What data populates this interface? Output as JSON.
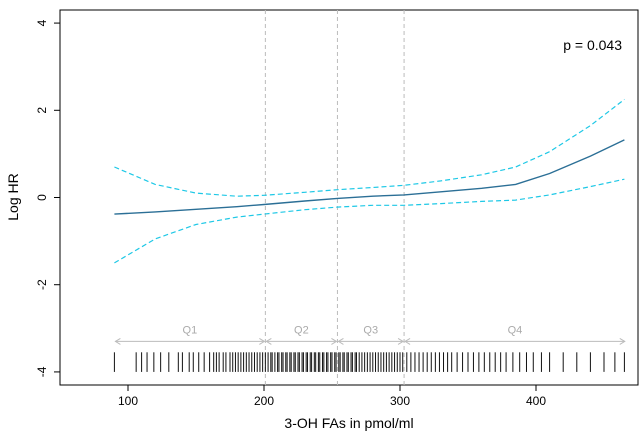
{
  "chart_data": {
    "type": "line",
    "xlabel": "3-OH FAs in pmol/ml",
    "ylabel": "Log HR",
    "annotation": "p = 0.043",
    "xlim": [
      50,
      475
    ],
    "ylim": [
      -4.3,
      4.3
    ],
    "x_ticks": [
      100,
      200,
      300,
      400
    ],
    "y_ticks": [
      -4,
      -2,
      0,
      2,
      4
    ],
    "grid": false,
    "colors": {
      "fit": "#2b6f96",
      "ci": "#1ec8e6",
      "quartile_lines": "#bbbbbb",
      "rug": "#111111"
    },
    "series": [
      {
        "role": "fit",
        "x": [
          90,
          120,
          150,
          180,
          200,
          230,
          254,
          280,
          303,
          330,
          360,
          385,
          410,
          440,
          465
        ],
        "y": [
          -0.38,
          -0.33,
          -0.27,
          -0.21,
          -0.16,
          -0.08,
          -0.02,
          0.03,
          0.06,
          0.13,
          0.21,
          0.3,
          0.55,
          0.95,
          1.32
        ]
      },
      {
        "role": "ci-upper",
        "x": [
          90,
          120,
          150,
          180,
          200,
          230,
          254,
          280,
          303,
          330,
          360,
          385,
          410,
          440,
          465
        ],
        "y": [
          0.7,
          0.3,
          0.1,
          0.03,
          0.05,
          0.12,
          0.18,
          0.23,
          0.28,
          0.38,
          0.52,
          0.7,
          1.05,
          1.65,
          2.25
        ]
      },
      {
        "role": "ci-lower",
        "x": [
          90,
          120,
          150,
          180,
          200,
          230,
          254,
          280,
          303,
          330,
          360,
          385,
          410,
          440,
          465
        ],
        "y": [
          -1.5,
          -0.95,
          -0.62,
          -0.45,
          -0.38,
          -0.28,
          -0.22,
          -0.18,
          -0.18,
          -0.14,
          -0.09,
          -0.06,
          0.06,
          0.25,
          0.42
        ]
      }
    ],
    "quartile_cutoffs": [
      201,
      254,
      303
    ],
    "quartiles": [
      {
        "label": "Q1",
        "from": 90,
        "to": 201
      },
      {
        "label": "Q2",
        "from": 201,
        "to": 254
      },
      {
        "label": "Q3",
        "from": 254,
        "to": 303
      },
      {
        "label": "Q4",
        "from": 303,
        "to": 466
      }
    ],
    "quartile_arrow_y": -3.3,
    "rug_y": [
      -4,
      -3.55
    ],
    "rug_x": [
      90,
      106,
      110,
      114,
      119,
      124,
      130,
      137,
      140,
      145,
      148,
      152,
      156,
      160,
      163,
      165,
      167,
      170,
      172,
      175,
      177,
      179,
      181,
      183,
      185,
      187,
      189,
      191,
      193,
      195,
      197,
      199,
      201,
      203,
      205,
      206,
      208,
      210,
      211,
      213,
      214,
      216,
      217,
      219,
      220,
      222,
      223,
      225,
      226,
      228,
      229,
      231,
      232,
      234,
      235,
      237,
      238,
      240,
      241,
      243,
      244,
      246,
      247,
      249,
      250,
      252,
      253,
      255,
      256,
      258,
      259,
      261,
      262,
      264,
      265,
      267,
      268,
      270,
      272,
      274,
      276,
      278,
      280,
      282,
      284,
      286,
      288,
      290,
      292,
      294,
      296,
      298,
      300,
      302,
      305,
      308,
      311,
      314,
      317,
      320,
      323,
      326,
      329,
      332,
      335,
      338,
      342,
      346,
      350,
      354,
      358,
      362,
      366,
      370,
      374,
      378,
      383,
      388,
      393,
      398,
      404,
      410,
      420,
      430,
      440,
      450,
      458,
      465
    ]
  }
}
